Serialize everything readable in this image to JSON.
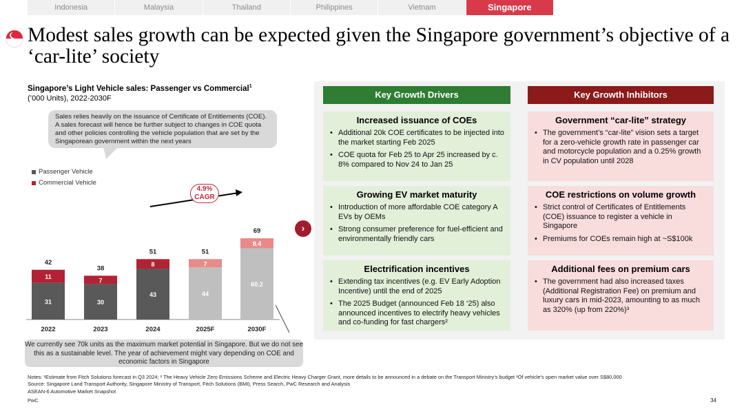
{
  "tabs": [
    "Indonesia",
    "Malaysia",
    "Thailand",
    "Philippines",
    "Vietnam",
    "Singapore"
  ],
  "title": "Modest sales growth can be expected given the Singapore government’s objective of a ‘car-lite’ society",
  "chart": {
    "title": "Singapore’s Light Vehicle sales: Passenger vs Commercial",
    "title_sup": "1",
    "subtitle": "(’000 Units), 2022-2030F",
    "bubble": "Sales relies heavily on the issuance of Certificate of Entitlements (COE). A sales forecast will hence be further subject to changes in COE quota and other policies controlling the vehicle population that are set by the Singaporean government within the next years",
    "legend_passenger": "Passenger Vehicle",
    "legend_commercial": "Commercial Vehicle",
    "cagr_value": "4.9%",
    "cagr_label": "CAGR",
    "note": "We currently see 70k units as the maximum market potential in Singapore. But we do not see this as a sustainable level. The year of achievement might vary depending on COE and economic factors in Singapore"
  },
  "chart_data": {
    "type": "bar",
    "stacked": true,
    "title": "Singapore’s Light Vehicle sales: Passenger vs Commercial",
    "ylabel": "’000 Units",
    "categories": [
      "2022",
      "2023",
      "2024",
      "2025F",
      "2030F"
    ],
    "totals": [
      "42",
      "38",
      "51",
      "51",
      "69"
    ],
    "series": [
      {
        "name": "Passenger Vehicle",
        "values": [
          31,
          30,
          43,
          44,
          60.2
        ],
        "labels": [
          "31",
          "30",
          "43",
          "44",
          "60.2"
        ],
        "colors": [
          "#595959",
          "#595959",
          "#595959",
          "#bfbfbf",
          "#bfbfbf"
        ]
      },
      {
        "name": "Commercial Vehicle",
        "values": [
          11,
          7,
          8,
          7,
          8.4
        ],
        "labels": [
          "11",
          "7",
          "8",
          "7",
          "8.4"
        ],
        "colors": [
          "#b22234",
          "#b22234",
          "#b22234",
          "#e88a8a",
          "#e88a8a"
        ]
      }
    ],
    "ylim": [
      0,
      80
    ]
  },
  "drivers": {
    "header": "Key Growth Drivers",
    "cards": [
      {
        "title": "Increased issuance of COEs",
        "bullets": [
          "Additional 20k COE certificates to be injected into the market starting Feb 2025",
          "COE quota for Feb 25 to Apr 25 increased by c. 8% compared to Nov 24 to Jan 25"
        ]
      },
      {
        "title": "Growing EV market maturity",
        "bullets": [
          "Introduction of more affordable COE category A EVs by OEMs",
          "Strong consumer preference for fuel-efficient and environmentally friendly cars"
        ]
      },
      {
        "title": "Electrification incentives",
        "bullets": [
          "Extending tax incentives (e.g. EV Early Adoption Incentive) until the end of 2025",
          "The 2025 Budget (announced Feb 18 ‘25) also announced incentives to electrify heavy vehicles and co-funding for fast chargers²"
        ]
      }
    ]
  },
  "inhibitors": {
    "header": "Key Growth Inhibitors",
    "cards": [
      {
        "title": "Government “car-lite” strategy",
        "bullets": [
          "The government’s “car-lite” vision sets a target for a zero-vehicle growth rate in passenger car and motorcycle population and a 0.25% growth in CV population until 2028"
        ]
      },
      {
        "title": "COE restrictions on volume growth",
        "bullets": [
          "Strict control of Certificates of Entitlements (COE) issuance to register a vehicle in Singapore",
          "Premiums for COEs remain high at ~S$100k"
        ]
      },
      {
        "title": "Additional fees on premium cars",
        "bullets": [
          "The government had also increased taxes (Additional Registration Fee) on premium and luxury cars in mid-2023, amounting to as much as 320% (up from 220%)³"
        ]
      }
    ]
  },
  "footer": {
    "notes": "Notes: ¹Estimate from Fitch Solutions forecast in Q3 2024;  ² The Heavy Vehicle Zero Emissions Scheme and Electric Heavy Charger Grant, more details to be announced in a debate on the Transport Ministry’s budget ³Of vehicle’s open market value over S$80,000",
    "source": "Source: Singapore Land Transport Authority, Singapore Ministry of Transport, Fitch Solutions (BMI), Press Search, PwC Research and Analysis",
    "deck": "ASEAN-6 Automotive Market Snapshot",
    "brand": "PwC",
    "page": "34"
  },
  "colors": {
    "accent": "#d93a4a",
    "green_header": "#2e7d32",
    "red_header": "#8b1a1a"
  }
}
